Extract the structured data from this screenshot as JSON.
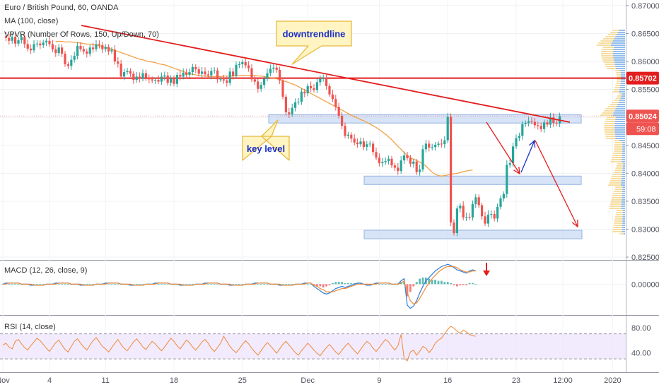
{
  "chart_data": [
    {
      "type": "line",
      "panel": "price",
      "title": "Euro / British Pound, 60, OANDA",
      "indicators": [
        "MA (100, close)",
        "VPVR (Number Of Rows, 150, Up/Down, 70)"
      ],
      "ylim": [
        0.8245,
        0.871
      ],
      "y_ticks": [
        "0.87000",
        "0.86500",
        "0.86000",
        "0.85500",
        "0.85000",
        "0.84500",
        "0.84000",
        "0.83500",
        "0.83000",
        "0.82500"
      ],
      "y_tick_values": [
        0.87,
        0.865,
        0.86,
        0.855,
        0.85,
        0.845,
        0.84,
        0.835,
        0.83,
        0.825
      ],
      "x_labels": [
        "Nov",
        "4",
        "11",
        "18",
        "25",
        "Dec",
        "9",
        "16",
        "23",
        "12:00",
        "2020"
      ],
      "x_label_index": [
        0,
        15,
        33,
        55,
        77,
        98,
        121,
        143,
        165,
        180,
        196
      ],
      "n_points": 200,
      "last_bar_index": 152,
      "series": [
        {
          "name": "price",
          "values": [
            0.8645,
            0.8642,
            0.8637,
            0.8644,
            0.8632,
            0.8638,
            0.8644,
            0.8631,
            0.8623,
            0.862,
            0.8631,
            0.8632,
            0.8629,
            0.8634,
            0.8637,
            0.8631,
            0.8622,
            0.8615,
            0.8625,
            0.8614,
            0.8595,
            0.8592,
            0.8603,
            0.861,
            0.8628,
            0.8622,
            0.8618,
            0.8614,
            0.8625,
            0.8622,
            0.8631,
            0.8629,
            0.8622,
            0.8626,
            0.8618,
            0.8621,
            0.86,
            0.8596,
            0.8573,
            0.8581,
            0.8583,
            0.8578,
            0.8567,
            0.8573,
            0.8569,
            0.8579,
            0.8571,
            0.8568,
            0.8566,
            0.8567,
            0.8564,
            0.8573,
            0.8575,
            0.8562,
            0.857,
            0.856,
            0.8576,
            0.8573,
            0.858,
            0.8576,
            0.8581,
            0.859,
            0.8586,
            0.8578,
            0.8582,
            0.8577,
            0.8575,
            0.8583,
            0.8584,
            0.8568,
            0.8568,
            0.8566,
            0.8562,
            0.8582,
            0.8574,
            0.8594,
            0.8595,
            0.8599,
            0.8593,
            0.8588,
            0.8568,
            0.8564,
            0.8551,
            0.8558,
            0.8569,
            0.8579,
            0.8587,
            0.8589,
            0.8585,
            0.8566,
            0.8537,
            0.8509,
            0.8506,
            0.8517,
            0.8527,
            0.8528,
            0.8546,
            0.8543,
            0.8556,
            0.8552,
            0.8549,
            0.8563,
            0.8569,
            0.8571,
            0.8556,
            0.8541,
            0.8533,
            0.8519,
            0.8503,
            0.8485,
            0.8467,
            0.8469,
            0.8462,
            0.8455,
            0.8452,
            0.8457,
            0.8447,
            0.8452,
            0.8453,
            0.8438,
            0.8428,
            0.8418,
            0.842,
            0.8422,
            0.8426,
            0.8414,
            0.841,
            0.8404,
            0.8423,
            0.8432,
            0.8427,
            0.8417,
            0.8421,
            0.8402,
            0.8407,
            0.8443,
            0.8453,
            0.8446,
            0.8447,
            0.8451,
            0.8453,
            0.8452,
            0.8459,
            0.8501,
            0.8312,
            0.8293,
            0.8337,
            0.8342,
            0.8321,
            0.8322,
            0.8321,
            0.8345,
            0.8357,
            0.8343,
            0.8323,
            0.831,
            0.8326,
            0.8327,
            0.8319,
            0.834,
            0.8355,
            0.8363,
            0.8415,
            0.8418,
            0.8448,
            0.8463,
            0.8467,
            0.8488,
            0.849,
            0.8493,
            0.8492,
            0.8486,
            0.8485,
            0.8479,
            0.8491,
            0.8487,
            0.85,
            0.849,
            0.8489,
            0.8502
          ]
        },
        {
          "name": "MA (100, close)",
          "values": [
            0.8636,
            0.8636,
            0.8636,
            0.8635,
            0.8635,
            0.8635,
            0.8634,
            0.8634,
            0.8633,
            0.8632,
            0.8631,
            0.8631,
            0.863,
            0.8629,
            0.8628,
            0.8627,
            0.8625,
            0.8624,
            0.8622,
            0.862,
            0.8618,
            0.8616,
            0.8614,
            0.8612,
            0.861,
            0.8608,
            0.8606,
            0.8604,
            0.8603,
            0.8601,
            0.86,
            0.8599,
            0.8598,
            0.8596,
            0.8595,
            0.8594,
            0.8592,
            0.859,
            0.8588,
            0.8586,
            0.8584,
            0.8582,
            0.858,
            0.8578,
            0.8577,
            0.8576,
            0.8575,
            0.8574,
            0.8574,
            0.8573,
            0.8573,
            0.8573,
            0.8573,
            0.8573,
            0.8574,
            0.8574,
            0.8574,
            0.8574,
            0.8575,
            0.8575,
            0.8575,
            0.8575,
            0.8575,
            0.8575,
            0.8575,
            0.8574,
            0.8574,
            0.8573,
            0.8572,
            0.8571,
            0.857,
            0.8569,
            0.8568,
            0.8566,
            0.8564,
            0.8562,
            0.856,
            0.8558,
            0.8555,
            0.8552,
            0.8549,
            0.8546,
            0.8543,
            0.854,
            0.8537,
            0.8534,
            0.8531,
            0.8528,
            0.8525,
            0.8522,
            0.8519,
            0.8516,
            0.8513,
            0.851,
            0.8507,
            0.8504,
            0.8501,
            0.8499,
            0.8496,
            0.8494,
            0.8491,
            0.8488,
            0.8485,
            0.8482,
            0.8478,
            0.8474,
            0.847,
            0.8465,
            0.846,
            0.8454,
            0.8448,
            0.8443,
            0.8437,
            0.8432,
            0.8428,
            0.8425,
            0.8423,
            0.842,
            0.8417,
            0.8413,
            0.8407,
            0.8402,
            0.8398,
            0.8396,
            0.8395,
            0.8396,
            0.8397,
            0.8398,
            0.8399,
            0.84,
            0.8401,
            0.8403,
            0.8404,
            0.8405,
            0.8406
          ]
        }
      ],
      "annotations": {
        "downtrend_label": "downtrendline",
        "key_level_label": "key level",
        "horizontal_level": 0.85702,
        "current_price": "0.85024",
        "countdown": "59:08",
        "support_zones": [
          [
            0.8495,
            0.8505
          ],
          [
            0.8385,
            0.8395
          ],
          [
            0.8285,
            0.8298
          ]
        ]
      },
      "colors": {
        "up": "#26a69a",
        "down": "#ef5350",
        "ma": "#f3a045",
        "resistance": "#e31d1d",
        "zone": "#c9daf3",
        "callout_bg": "#fff4c2",
        "callout_text": "#1a2fc8",
        "arrow_down": "#e31d1d",
        "arrow_up": "#1a2fc8"
      }
    },
    {
      "type": "line",
      "panel": "macd",
      "title": "MACD (12, 26, close, 9)",
      "y_ticks": [
        "0.00000"
      ],
      "y_tick_values": [
        0
      ],
      "ylim": [
        -0.0028,
        0.0022
      ],
      "n_points": 153,
      "series": [
        {
          "name": "MACD",
          "values": [
            0.0,
            0.0001,
            0.0001,
            0.0001,
            0.0001,
            0.0001,
            0.0,
            0.0,
            -0.0,
            -0.0001,
            -0.0001,
            -0.0001,
            -0.0001,
            -0.0001,
            -0.0,
            -0.0,
            0.0,
            0.0001,
            0.0001,
            0.0001,
            0.0001,
            0.0001,
            0.0,
            0.0,
            -0.0,
            -0.0001,
            -0.0001,
            -0.0001,
            -0.0001,
            -0.0001,
            -0.0,
            -0.0,
            0.0,
            0.0001,
            0.0001,
            0.0001,
            0.0001,
            0.0001,
            0.0,
            0.0,
            -0.0,
            -0.0001,
            -0.0001,
            -0.0001,
            -0.0001,
            -0.0001,
            -0.0,
            -0.0,
            0.0,
            0.0001,
            0.0001,
            0.0001,
            0.0001,
            0.0001,
            0.0,
            0.0,
            -0.0,
            -0.0001,
            -0.0001,
            -0.0001,
            -0.0001,
            -0.0001,
            -0.0,
            -0.0,
            0.0,
            0.0001,
            0.0001,
            0.0001,
            0.0001,
            0.0001,
            0.0,
            0.0,
            -0.0,
            -0.0001,
            -0.0001,
            -0.0001,
            -0.0001,
            -0.0001,
            -0.0,
            -0.0,
            0.0,
            0.0001,
            0.0001,
            0.0001,
            0.0001,
            0.0001,
            0.0,
            0.0,
            -0.0,
            -0.0001,
            -0.0001,
            -0.0001,
            -0.0001,
            -0.0001,
            -0.0,
            -0.0,
            0.0,
            0.0001,
            0.0001,
            0.0001,
            -0.0002,
            -0.0004,
            -0.0006,
            -0.0008,
            -0.0009,
            -0.0008,
            -0.0006,
            -0.0004,
            -0.0003,
            -0.0002,
            -0.0003,
            -0.0002,
            -0.0001,
            0.0,
            0.0001,
            0.0001,
            0.0,
            -0.0001,
            -0.0001,
            -0.0,
            0.0001,
            0.0001,
            0.0001,
            0.0001,
            0.0001,
            0.0,
            0.0,
            -0.0,
            0.0003,
            0.0005,
            -0.0019,
            -0.0022,
            -0.002,
            -0.0015,
            -0.0008,
            -0.0002,
            0.0003,
            0.0006,
            0.0009,
            0.0012,
            0.0014,
            0.0016,
            0.0017,
            0.0018,
            0.0017,
            0.0015,
            0.0013,
            0.0012,
            0.0011,
            0.001,
            0.0012,
            0.0013,
            0.0012
          ]
        },
        {
          "name": "Signal",
          "values": [
            0.0,
            0.0,
            0.0001,
            0.0001,
            0.0001,
            0.0001,
            0.0,
            0.0,
            -0.0,
            -0.0,
            -0.0001,
            -0.0001,
            -0.0001,
            -0.0001,
            -0.0,
            -0.0,
            0.0,
            0.0,
            0.0001,
            0.0001,
            0.0001,
            0.0001,
            0.0,
            0.0,
            -0.0,
            -0.0,
            -0.0001,
            -0.0001,
            -0.0001,
            -0.0001,
            -0.0,
            -0.0,
            0.0,
            0.0,
            0.0001,
            0.0001,
            0.0001,
            0.0001,
            0.0,
            0.0,
            -0.0,
            -0.0,
            -0.0001,
            -0.0001,
            -0.0001,
            -0.0001,
            -0.0,
            -0.0,
            0.0,
            0.0,
            0.0001,
            0.0001,
            0.0001,
            0.0001,
            0.0,
            0.0,
            -0.0,
            -0.0,
            -0.0001,
            -0.0001,
            -0.0001,
            -0.0001,
            -0.0,
            -0.0,
            0.0,
            0.0,
            0.0001,
            0.0001,
            0.0001,
            0.0001,
            0.0,
            0.0,
            -0.0,
            -0.0,
            -0.0001,
            -0.0001,
            -0.0001,
            -0.0001,
            -0.0,
            -0.0,
            0.0,
            0.0,
            0.0001,
            0.0001,
            0.0001,
            0.0001,
            0.0,
            0.0,
            -0.0,
            -0.0,
            -0.0001,
            -0.0001,
            -0.0001,
            -0.0001,
            -0.0,
            -0.0,
            0.0,
            0.0,
            0.0001,
            0.0001,
            -0.0001,
            -0.0002,
            -0.0004,
            -0.0005,
            -0.0007,
            -0.0007,
            -0.0007,
            -0.0006,
            -0.0005,
            -0.0004,
            -0.0004,
            -0.0003,
            -0.0002,
            -0.0001,
            0.0,
            0.0,
            0.0,
            -0.0,
            -0.0,
            -0.0,
            0.0,
            0.0001,
            0.0001,
            0.0001,
            0.0001,
            0.0,
            0.0,
            0.0,
            0.0001,
            0.0003,
            -0.0008,
            -0.0015,
            -0.0018,
            -0.0017,
            -0.0013,
            -0.0008,
            -0.0003,
            0.0001,
            0.0005,
            0.0008,
            0.0011,
            0.0013,
            0.0015,
            0.0016,
            0.0016,
            0.0016,
            0.0015,
            0.0013,
            0.0012,
            0.0011,
            0.0011,
            0.0012,
            0.0012
          ]
        }
      ],
      "colors": {
        "macd": "#2d7de0",
        "signal": "#f08a36",
        "hist_up": "#26a69a",
        "hist_down": "#ef5350",
        "arrow": "#e31d1d"
      }
    },
    {
      "type": "line",
      "panel": "rsi",
      "title": "RSI (14, close)",
      "y_ticks": [
        "80.00",
        "40.00"
      ],
      "y_tick_values": [
        80,
        40
      ],
      "ylim": [
        20,
        100
      ],
      "band": [
        30,
        70
      ],
      "n_points": 153,
      "series": [
        {
          "name": "RSI",
          "values": [
            52.0,
            55.0,
            49.0,
            46.0,
            58.0,
            61.0,
            54.0,
            48.0,
            44.0,
            51.0,
            57.0,
            63.0,
            59.0,
            53.0,
            47.0,
            42.0,
            49.0,
            56.0,
            60.0,
            52.0,
            45.0,
            41.0,
            50.0,
            58.0,
            62.0,
            55.0,
            49.0,
            44.0,
            52.0,
            59.0,
            64.0,
            57.0,
            50.0,
            46.0,
            41.0,
            48.0,
            55.0,
            61.0,
            53.0,
            47.0,
            43.0,
            50.0,
            57.0,
            62.0,
            56.0,
            49.0,
            45.0,
            52.0,
            58.0,
            54.0,
            48.0,
            43.0,
            49.0,
            56.0,
            63.0,
            58.0,
            51.0,
            46.0,
            53.0,
            60.0,
            56.0,
            49.0,
            44.0,
            50.0,
            57.0,
            61.0,
            55.0,
            47.0,
            42.0,
            48.0,
            55.0,
            66.0,
            58.0,
            50.0,
            44.0,
            40.0,
            46.0,
            53.0,
            59.0,
            54.0,
            47.0,
            41.0,
            36.0,
            43.0,
            50.0,
            56.0,
            51.0,
            45.0,
            39.0,
            46.0,
            53.0,
            58.0,
            52.0,
            46.0,
            40.0,
            36.0,
            43.0,
            49.0,
            55.0,
            50.0,
            44.0,
            39.0,
            35.0,
            42.0,
            48.0,
            53.0,
            47.0,
            41.0,
            37.0,
            44.0,
            50.0,
            55.0,
            49.0,
            43.0,
            38.0,
            45.0,
            52.0,
            58.0,
            54.0,
            47.0,
            42.0,
            48.0,
            55.0,
            61.0,
            57.0,
            50.0,
            44.0,
            51.0,
            69.0,
            30.0,
            27.0,
            41.0,
            44.0,
            36.0,
            42.0,
            50.0,
            47.0,
            40.0,
            46.0,
            55.0,
            60.0,
            63.0,
            70.0,
            77.0,
            82.0,
            79.0,
            74.0,
            71.0,
            76.0,
            73.0,
            69.0,
            67.0,
            66.0
          ]
        }
      ],
      "colors": {
        "line": "#f08a36",
        "band": "#e9dcfb"
      }
    }
  ]
}
